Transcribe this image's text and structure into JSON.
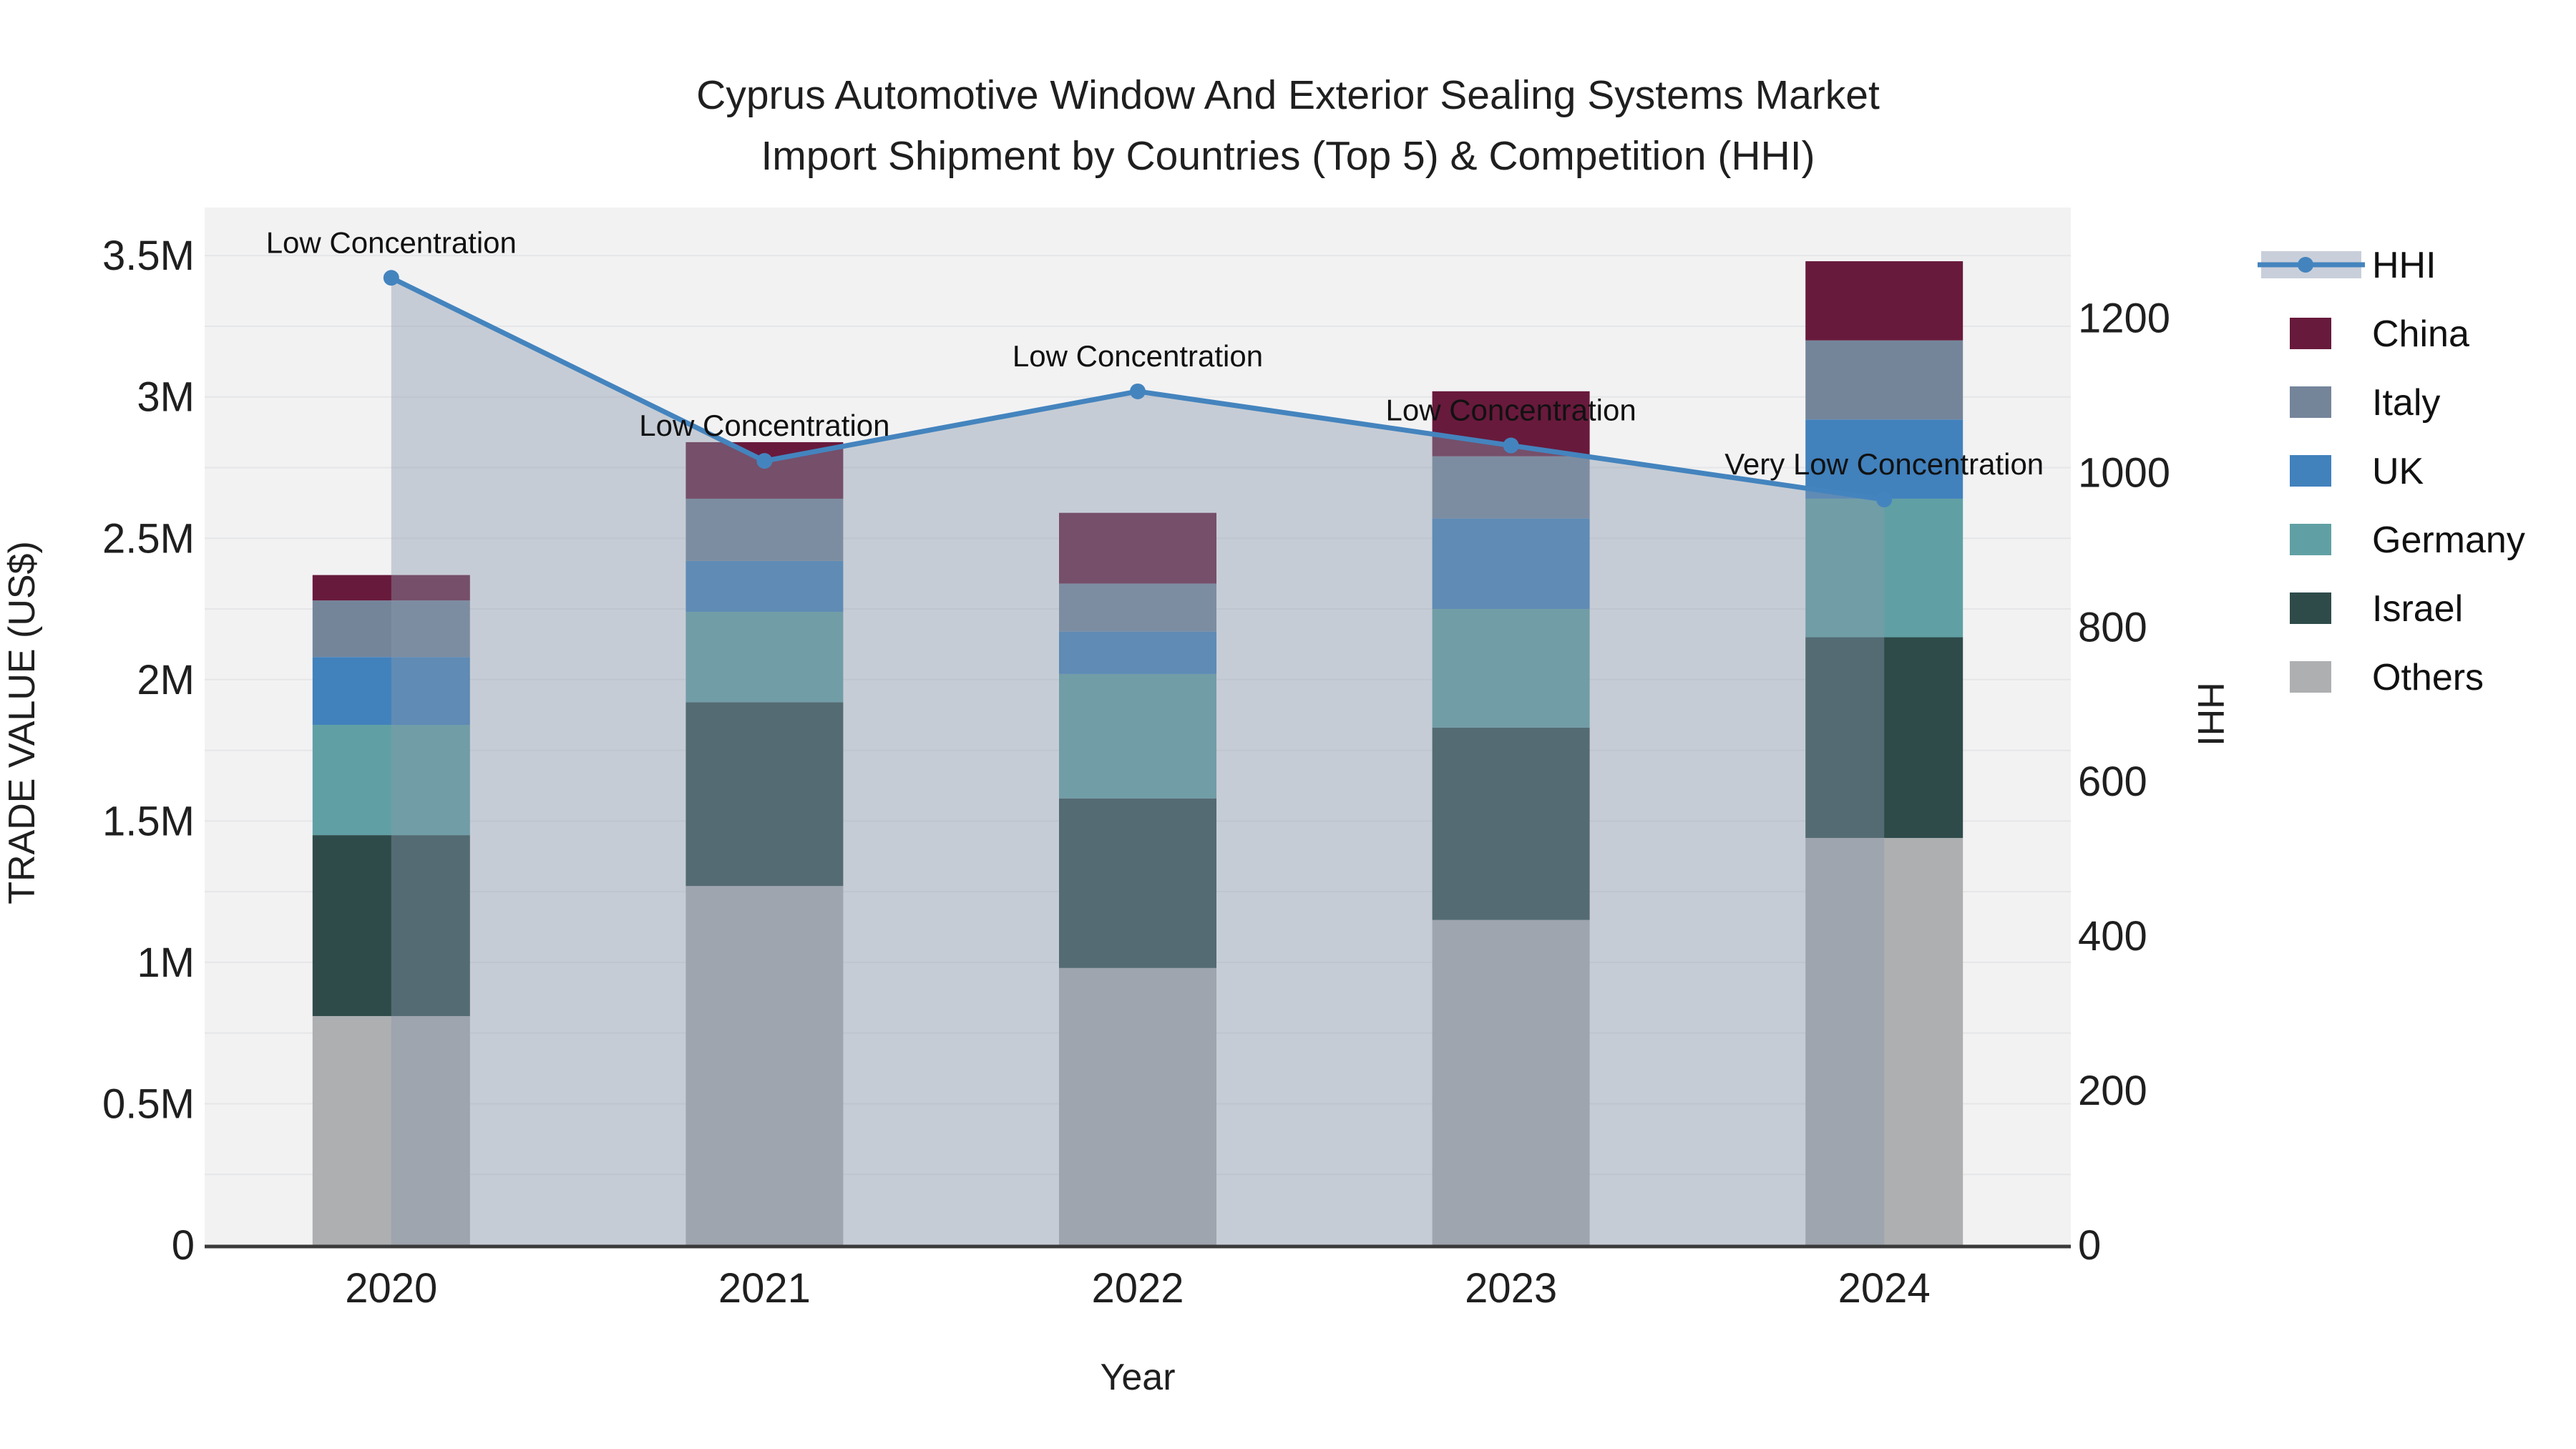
{
  "chart": {
    "title_line1": "Cyprus Automotive Window And Exterior Sealing Systems Market",
    "title_line2": "Import Shipment by Countries (Top 5) & Competition (HHI)",
    "x_axis_title": "Year",
    "y_left_axis_title": "TRADE VALUE (US$)",
    "y_right_axis_title": "HHI"
  },
  "chart_data": {
    "type": "combo",
    "subtype": "stacked-bar+line-area",
    "categories": [
      "2020",
      "2021",
      "2022",
      "2023",
      "2024"
    ],
    "bar_series_bottom_to_top": [
      {
        "name": "Others",
        "color": "#ADAFB1",
        "values": [
          810000,
          1270000,
          980000,
          1150000,
          1440000
        ]
      },
      {
        "name": "Israel",
        "color": "#2E4B4A",
        "values": [
          640000,
          650000,
          600000,
          680000,
          710000
        ]
      },
      {
        "name": "Germany",
        "color": "#60A0A4",
        "values": [
          390000,
          320000,
          440000,
          420000,
          490000
        ]
      },
      {
        "name": "UK",
        "color": "#4181BC",
        "values": [
          240000,
          180000,
          150000,
          320000,
          280000
        ]
      },
      {
        "name": "Italy",
        "color": "#74859A",
        "values": [
          200000,
          220000,
          170000,
          220000,
          280000
        ]
      },
      {
        "name": "China",
        "color": "#681A3C",
        "values": [
          90000,
          200000,
          250000,
          230000,
          280000
        ]
      }
    ],
    "bar_totals": [
      2370000,
      2840000,
      2590000,
      3020000,
      3480000
    ],
    "line_series": {
      "name": "HHI",
      "axis": "right",
      "color": "#4484BE",
      "fill_color": "rgba(139,152,171,0.42)",
      "values": [
        1252,
        1015,
        1105,
        1035,
        965
      ]
    },
    "annotations": [
      {
        "category": "2020",
        "text": "Low Concentration"
      },
      {
        "category": "2021",
        "text": "Low Concentration"
      },
      {
        "category": "2022",
        "text": "Low Concentration"
      },
      {
        "category": "2023",
        "text": "Low Concentration"
      },
      {
        "category": "2024",
        "text": "Very Low Concentration"
      }
    ],
    "y_left_axis": {
      "title": "TRADE VALUE (US$)",
      "ticks": [
        {
          "value": 0,
          "label": "0"
        },
        {
          "value": 500000,
          "label": "0.5M"
        },
        {
          "value": 1000000,
          "label": "1M"
        },
        {
          "value": 1500000,
          "label": "1.5M"
        },
        {
          "value": 2000000,
          "label": "2M"
        },
        {
          "value": 2500000,
          "label": "2.5M"
        },
        {
          "value": 3000000,
          "label": "3M"
        },
        {
          "value": 3500000,
          "label": "3.5M"
        }
      ]
    },
    "y_right_axis": {
      "title": "HHI",
      "ticks": [
        {
          "value": 0,
          "label": "0"
        },
        {
          "value": 200,
          "label": "200"
        },
        {
          "value": 400,
          "label": "400"
        },
        {
          "value": 600,
          "label": "600"
        },
        {
          "value": 800,
          "label": "800"
        },
        {
          "value": 1000,
          "label": "1000"
        },
        {
          "value": 1200,
          "label": "1200"
        }
      ]
    },
    "x_axis": {
      "title": "Year",
      "labels": [
        "2020",
        "2021",
        "2022",
        "2023",
        "2024"
      ]
    },
    "legend": [
      {
        "label": "HHI",
        "symbol": "line",
        "color": "#4484BE",
        "band_color": "#C9CFDA"
      },
      {
        "label": "China",
        "symbol": "square",
        "color": "#681A3C"
      },
      {
        "label": "Italy",
        "symbol": "square",
        "color": "#74859A"
      },
      {
        "label": "UK",
        "symbol": "square",
        "color": "#4181BC"
      },
      {
        "label": "Germany",
        "symbol": "square",
        "color": "#60A0A4"
      },
      {
        "label": "Israel",
        "symbol": "square",
        "color": "#2E4B4A"
      },
      {
        "label": "Others",
        "symbol": "square",
        "color": "#ADAFB1"
      }
    ],
    "layout_hints": {
      "plot_bg": "#F2F2F3",
      "grid_color": "#E5E6E8",
      "axis_line_color": "#3A3A3A",
      "text_color": "#1F1F1F",
      "legend_position": "top-right-outside",
      "y_left_range": [
        0,
        3670000
      ],
      "y_right_range": [
        0,
        1343
      ],
      "grid": "on"
    }
  }
}
